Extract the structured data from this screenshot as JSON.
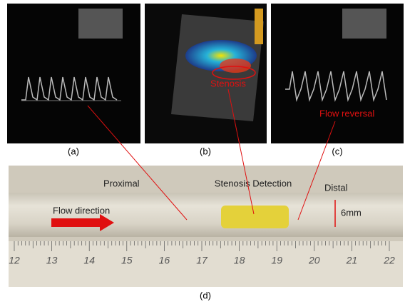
{
  "panels": {
    "a": {
      "label": "(a)"
    },
    "b": {
      "label": "(b)",
      "annotation": "Stenosis"
    },
    "c": {
      "label": "(c)",
      "annotation": "Flow reversal"
    },
    "d": {
      "label": "(d)",
      "proximal": "Proximal",
      "stenosis": "Stenosis Detection",
      "distal": "Distal",
      "flow": "Flow direction",
      "diameter": "6mm",
      "ruler": [
        "12",
        "13",
        "14",
        "15",
        "16",
        "17",
        "18",
        "19",
        "20",
        "21",
        "22"
      ]
    }
  }
}
